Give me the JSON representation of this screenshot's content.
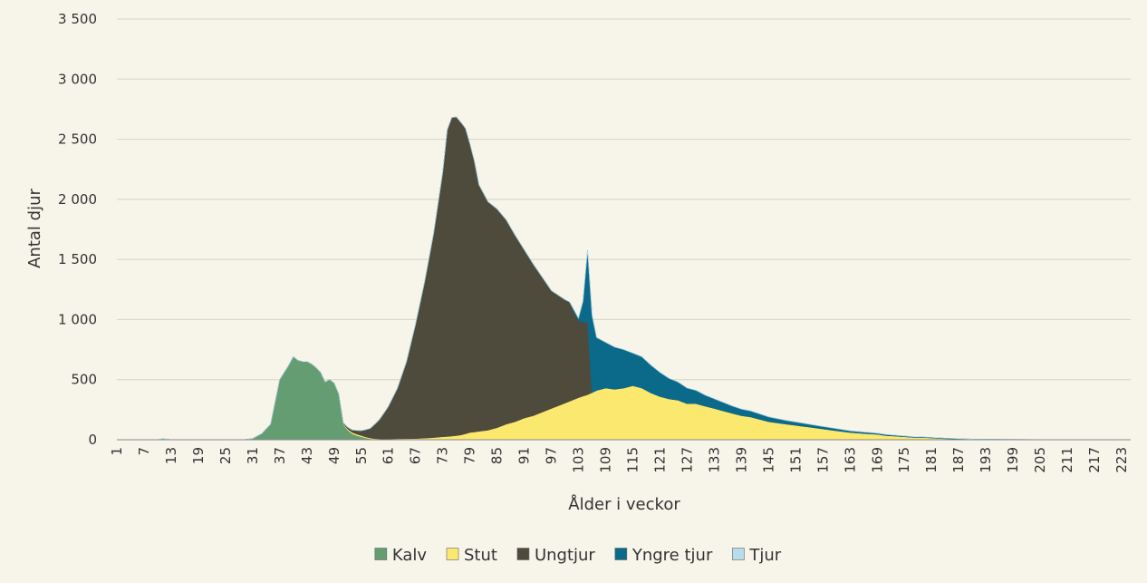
{
  "chart_data": {
    "type": "area",
    "stacked": true,
    "xlabel": "Ålder i veckor",
    "ylabel": "Antal djur",
    "xlim": [
      1,
      225
    ],
    "ylim": [
      0,
      3500
    ],
    "y_ticks": [
      0,
      500,
      1000,
      1500,
      2000,
      2500,
      3000,
      3500
    ],
    "y_tick_labels": [
      "0",
      "500",
      "1 000",
      "1 500",
      "2 000",
      "2 500",
      "3 000",
      "3 500"
    ],
    "x_tick_labels": [
      "1",
      "7",
      "13",
      "19",
      "25",
      "31",
      "37",
      "43",
      "49",
      "55",
      "61",
      "67",
      "73",
      "79",
      "85",
      "91",
      "97",
      "103",
      "109",
      "115",
      "121",
      "127",
      "133",
      "139",
      "145",
      "151",
      "157",
      "163",
      "169",
      "175",
      "181",
      "187",
      "193",
      "199",
      "205",
      "211",
      "217",
      "223"
    ],
    "grid": "horizontal",
    "legend_position": "bottom",
    "series": [
      {
        "name": "Kalv",
        "color": "#649d72",
        "points": [
          [
            1,
            0
          ],
          [
            29,
            0
          ],
          [
            31,
            10
          ],
          [
            33,
            50
          ],
          [
            35,
            130
          ],
          [
            37,
            500
          ],
          [
            38,
            560
          ],
          [
            39,
            620
          ],
          [
            40,
            690
          ],
          [
            41,
            660
          ],
          [
            42,
            650
          ],
          [
            43,
            650
          ],
          [
            44,
            630
          ],
          [
            45,
            600
          ],
          [
            46,
            560
          ],
          [
            47,
            480
          ],
          [
            48,
            500
          ],
          [
            49,
            470
          ],
          [
            50,
            380
          ],
          [
            51,
            130
          ],
          [
            52,
            80
          ],
          [
            53,
            50
          ],
          [
            54,
            35
          ],
          [
            55,
            25
          ],
          [
            56,
            15
          ],
          [
            57,
            8
          ],
          [
            58,
            4
          ],
          [
            60,
            0
          ],
          [
            225,
            0
          ]
        ]
      },
      {
        "name": "Stut",
        "color": "#fbe86e",
        "points": [
          [
            1,
            0
          ],
          [
            50,
            0
          ],
          [
            52,
            10
          ],
          [
            54,
            12
          ],
          [
            56,
            8
          ],
          [
            58,
            5
          ],
          [
            60,
            5
          ],
          [
            63,
            8
          ],
          [
            67,
            10
          ],
          [
            70,
            15
          ],
          [
            73,
            25
          ],
          [
            75,
            30
          ],
          [
            77,
            40
          ],
          [
            79,
            60
          ],
          [
            81,
            70
          ],
          [
            83,
            80
          ],
          [
            85,
            100
          ],
          [
            87,
            130
          ],
          [
            89,
            150
          ],
          [
            91,
            180
          ],
          [
            93,
            200
          ],
          [
            95,
            230
          ],
          [
            97,
            260
          ],
          [
            99,
            290
          ],
          [
            101,
            320
          ],
          [
            103,
            350
          ],
          [
            105,
            375
          ],
          [
            107,
            410
          ],
          [
            109,
            430
          ],
          [
            111,
            420
          ],
          [
            113,
            430
          ],
          [
            115,
            450
          ],
          [
            117,
            430
          ],
          [
            119,
            390
          ],
          [
            121,
            360
          ],
          [
            123,
            340
          ],
          [
            125,
            330
          ],
          [
            127,
            300
          ],
          [
            129,
            300
          ],
          [
            131,
            280
          ],
          [
            133,
            260
          ],
          [
            135,
            240
          ],
          [
            137,
            220
          ],
          [
            139,
            200
          ],
          [
            141,
            190
          ],
          [
            143,
            170
          ],
          [
            145,
            150
          ],
          [
            147,
            140
          ],
          [
            149,
            130
          ],
          [
            151,
            120
          ],
          [
            153,
            110
          ],
          [
            155,
            100
          ],
          [
            157,
            90
          ],
          [
            159,
            80
          ],
          [
            161,
            70
          ],
          [
            163,
            60
          ],
          [
            165,
            55
          ],
          [
            167,
            50
          ],
          [
            169,
            45
          ],
          [
            171,
            35
          ],
          [
            173,
            30
          ],
          [
            175,
            25
          ],
          [
            177,
            20
          ],
          [
            179,
            18
          ],
          [
            181,
            15
          ],
          [
            183,
            10
          ],
          [
            185,
            8
          ],
          [
            187,
            6
          ],
          [
            190,
            3
          ],
          [
            195,
            2
          ],
          [
            200,
            1
          ],
          [
            225,
            0
          ]
        ]
      },
      {
        "name": "Ungtjur",
        "color": "#4e4a3c",
        "points": [
          [
            1,
            0
          ],
          [
            50,
            0
          ],
          [
            51,
            5
          ],
          [
            53,
            20
          ],
          [
            55,
            40
          ],
          [
            57,
            80
          ],
          [
            59,
            160
          ],
          [
            61,
            270
          ],
          [
            63,
            420
          ],
          [
            65,
            640
          ],
          [
            67,
            950
          ],
          [
            69,
            1300
          ],
          [
            71,
            1700
          ],
          [
            73,
            2200
          ],
          [
            74,
            2550
          ],
          [
            75,
            2650
          ],
          [
            76,
            2650
          ],
          [
            77,
            2600
          ],
          [
            78,
            2540
          ],
          [
            79,
            2400
          ],
          [
            80,
            2250
          ],
          [
            81,
            2050
          ],
          [
            83,
            1900
          ],
          [
            85,
            1820
          ],
          [
            87,
            1700
          ],
          [
            89,
            1550
          ],
          [
            91,
            1400
          ],
          [
            93,
            1260
          ],
          [
            95,
            1120
          ],
          [
            97,
            980
          ],
          [
            99,
            900
          ],
          [
            101,
            820
          ],
          [
            103,
            640
          ],
          [
            104,
            620
          ],
          [
            105,
            600
          ],
          [
            106,
            0
          ],
          [
            225,
            0
          ]
        ]
      },
      {
        "name": "Yngre tjur",
        "color": "#0b6a8a",
        "points": [
          [
            1,
            0
          ],
          [
            10,
            0
          ],
          [
            11,
            8
          ],
          [
            12,
            5
          ],
          [
            13,
            0
          ],
          [
            60,
            0
          ],
          [
            100,
            0
          ],
          [
            103,
            20
          ],
          [
            104,
            170
          ],
          [
            105,
            600
          ],
          [
            106,
            640
          ],
          [
            107,
            440
          ],
          [
            109,
            380
          ],
          [
            111,
            350
          ],
          [
            113,
            320
          ],
          [
            115,
            270
          ],
          [
            117,
            260
          ],
          [
            119,
            230
          ],
          [
            121,
            200
          ],
          [
            123,
            170
          ],
          [
            125,
            150
          ],
          [
            127,
            130
          ],
          [
            129,
            110
          ],
          [
            131,
            90
          ],
          [
            133,
            80
          ],
          [
            135,
            70
          ],
          [
            137,
            60
          ],
          [
            139,
            55
          ],
          [
            141,
            50
          ],
          [
            143,
            45
          ],
          [
            145,
            40
          ],
          [
            147,
            35
          ],
          [
            149,
            30
          ],
          [
            151,
            28
          ],
          [
            153,
            25
          ],
          [
            155,
            22
          ],
          [
            157,
            20
          ],
          [
            159,
            18
          ],
          [
            161,
            16
          ],
          [
            163,
            14
          ],
          [
            165,
            12
          ],
          [
            167,
            10
          ],
          [
            169,
            9
          ],
          [
            171,
            8
          ],
          [
            173,
            7
          ],
          [
            175,
            6
          ],
          [
            177,
            5
          ],
          [
            179,
            5
          ],
          [
            181,
            4
          ],
          [
            183,
            4
          ],
          [
            185,
            3
          ],
          [
            187,
            3
          ],
          [
            190,
            2
          ],
          [
            195,
            2
          ],
          [
            200,
            1
          ],
          [
            205,
            1
          ],
          [
            225,
            0
          ]
        ]
      },
      {
        "name": "Tjur",
        "color": "#b8dceb",
        "points": [
          [
            1,
            0
          ],
          [
            225,
            0
          ]
        ]
      }
    ]
  }
}
